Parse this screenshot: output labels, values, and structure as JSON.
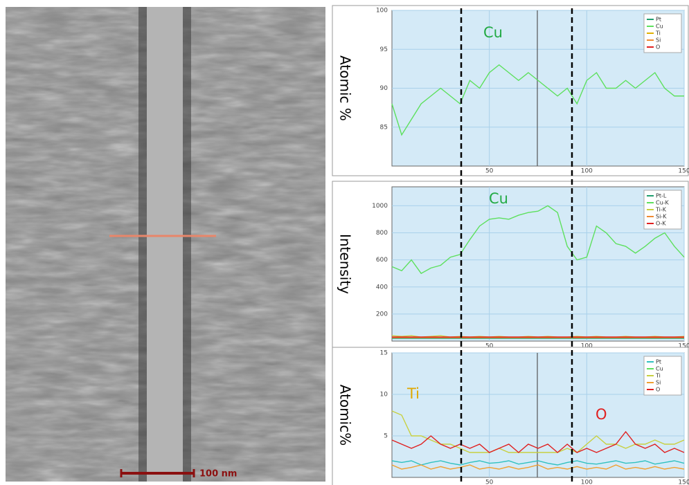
{
  "image": {
    "scale_bar": "100 nm"
  },
  "chart_data": [
    {
      "type": "line",
      "ylabel": "Atomic %",
      "x": [
        0,
        5,
        10,
        15,
        20,
        25,
        30,
        35,
        40,
        45,
        50,
        55,
        60,
        65,
        70,
        75,
        80,
        85,
        90,
        95,
        100,
        105,
        110,
        115,
        120,
        125,
        130,
        135,
        140,
        145,
        150
      ],
      "xlim": [
        0,
        150
      ],
      "xticks": [
        50,
        100,
        150
      ],
      "ylim": [
        80,
        100
      ],
      "yticks": [
        85,
        90,
        95,
        100
      ],
      "grid": true,
      "annotations": [
        {
          "text": "Cu",
          "color": "#22aa44"
        }
      ],
      "series": [
        {
          "name": "Pt",
          "color": "#1f9e6e",
          "values": [
            null,
            null,
            null,
            null,
            null,
            null,
            null,
            null,
            null,
            null,
            null,
            null,
            null,
            null,
            null,
            null,
            null,
            null,
            null,
            null,
            null,
            null,
            null,
            null,
            null,
            null,
            null,
            null,
            null,
            null,
            null
          ]
        },
        {
          "name": "Cu",
          "color": "#5de05d",
          "values": [
            88,
            84,
            86,
            88,
            89,
            90,
            89,
            88,
            91,
            90,
            92,
            93,
            92,
            91,
            92,
            91,
            90,
            89,
            90,
            88,
            91,
            92,
            90,
            90,
            91,
            90,
            91,
            92,
            90,
            89,
            89
          ]
        },
        {
          "name": "Ti",
          "color": "#e0b000",
          "values": [
            null,
            null,
            null,
            null,
            null,
            null,
            null,
            null,
            null,
            null,
            null,
            null,
            null,
            null,
            null,
            null,
            null,
            null,
            null,
            null,
            null,
            null,
            null,
            null,
            null,
            null,
            null,
            null,
            null,
            null,
            null
          ]
        },
        {
          "name": "Si",
          "color": "#f08a30",
          "values": [
            null,
            null,
            null,
            null,
            null,
            null,
            null,
            null,
            null,
            null,
            null,
            null,
            null,
            null,
            null,
            null,
            null,
            null,
            null,
            null,
            null,
            null,
            null,
            null,
            null,
            null,
            null,
            null,
            null,
            null,
            null
          ]
        },
        {
          "name": "O",
          "color": "#e02020",
          "values": [
            null,
            null,
            null,
            null,
            null,
            null,
            null,
            null,
            null,
            null,
            null,
            null,
            null,
            null,
            null,
            null,
            null,
            null,
            null,
            null,
            null,
            null,
            null,
            null,
            null,
            null,
            null,
            null,
            null,
            null,
            null
          ]
        }
      ]
    },
    {
      "type": "line",
      "ylabel": "Intensity",
      "x": [
        0,
        5,
        10,
        15,
        20,
        25,
        30,
        35,
        40,
        45,
        50,
        55,
        60,
        65,
        70,
        75,
        80,
        85,
        90,
        95,
        100,
        105,
        110,
        115,
        120,
        125,
        130,
        135,
        140,
        145,
        150
      ],
      "xlim": [
        0,
        150
      ],
      "xticks": [
        50,
        100,
        150
      ],
      "ylim": [
        0,
        1140
      ],
      "yticks": [
        200,
        400,
        600,
        800,
        1000
      ],
      "grid": true,
      "annotations": [
        {
          "text": "Cu",
          "color": "#22aa44"
        }
      ],
      "series": [
        {
          "name": "Pt-L",
          "color": "#1f9e6e",
          "values": [
            20,
            20,
            20,
            20,
            20,
            20,
            20,
            20,
            20,
            20,
            20,
            20,
            20,
            20,
            20,
            20,
            20,
            20,
            20,
            20,
            20,
            20,
            20,
            20,
            20,
            20,
            20,
            20,
            20,
            20,
            20
          ]
        },
        {
          "name": "Cu-K",
          "color": "#5de05d",
          "values": [
            550,
            520,
            600,
            500,
            540,
            560,
            620,
            640,
            750,
            850,
            900,
            910,
            900,
            930,
            950,
            960,
            1000,
            950,
            700,
            600,
            620,
            850,
            800,
            720,
            700,
            650,
            700,
            760,
            800,
            700,
            620
          ]
        },
        {
          "name": "Ti-K",
          "color": "#c8d040",
          "values": [
            40,
            35,
            40,
            30,
            35,
            40,
            30,
            35,
            30,
            35,
            30,
            35,
            30,
            30,
            35,
            30,
            35,
            30,
            30,
            35,
            30,
            35,
            30,
            30,
            35,
            30,
            30,
            35,
            30,
            30,
            35
          ]
        },
        {
          "name": "Si-K",
          "color": "#f08a30",
          "values": [
            25,
            25,
            25,
            25,
            25,
            25,
            25,
            25,
            25,
            25,
            25,
            25,
            25,
            25,
            25,
            25,
            25,
            25,
            25,
            25,
            25,
            25,
            25,
            25,
            25,
            25,
            25,
            25,
            25,
            25,
            25
          ]
        },
        {
          "name": "O-K",
          "color": "#e02020",
          "values": [
            30,
            30,
            30,
            30,
            30,
            30,
            30,
            30,
            30,
            30,
            30,
            30,
            30,
            30,
            30,
            30,
            30,
            30,
            30,
            30,
            30,
            30,
            30,
            30,
            30,
            30,
            30,
            30,
            30,
            30,
            30
          ]
        }
      ]
    },
    {
      "type": "line",
      "ylabel": "Atomic%",
      "x": [
        0,
        5,
        10,
        15,
        20,
        25,
        30,
        35,
        40,
        45,
        50,
        55,
        60,
        65,
        70,
        75,
        80,
        85,
        90,
        95,
        100,
        105,
        110,
        115,
        120,
        125,
        130,
        135,
        140,
        145,
        150
      ],
      "xlim": [
        0,
        150
      ],
      "xticks": [
        50,
        100,
        150
      ],
      "ylim": [
        0,
        15
      ],
      "yticks": [
        5,
        10,
        15
      ],
      "grid": true,
      "annotations": [
        {
          "text": "Ti",
          "color": "#e0a800"
        },
        {
          "text": "O",
          "color": "#e02020"
        }
      ],
      "series": [
        {
          "name": "Pt",
          "color": "#30c0c0",
          "values": [
            2,
            1.8,
            2,
            1.5,
            1.8,
            2,
            1.7,
            1.5,
            1.8,
            2,
            1.7,
            1.8,
            2,
            1.6,
            1.8,
            2,
            1.7,
            1.5,
            1.8,
            2,
            1.7,
            1.6,
            1.8,
            2,
            1.7,
            1.8,
            2,
            1.6,
            1.8,
            2,
            1.7
          ]
        },
        {
          "name": "Cu",
          "color": "#5de05d",
          "values": [
            null,
            null,
            null,
            null,
            null,
            null,
            null,
            null,
            null,
            null,
            null,
            null,
            null,
            null,
            null,
            null,
            null,
            null,
            null,
            null,
            null,
            null,
            null,
            null,
            null,
            null,
            null,
            null,
            null,
            null,
            null
          ]
        },
        {
          "name": "Ti",
          "color": "#c8d040",
          "values": [
            8,
            7.5,
            5,
            5,
            4.5,
            4,
            4,
            3.5,
            3,
            3,
            3,
            3.5,
            3,
            3,
            3,
            3,
            3,
            3,
            3.5,
            3,
            4,
            5,
            4,
            4,
            3.5,
            4,
            4,
            4.5,
            4,
            4,
            4.5
          ]
        },
        {
          "name": "Si",
          "color": "#f0a030",
          "values": [
            1.5,
            1,
            1.2,
            1.5,
            1,
            1.3,
            1,
            1.2,
            1.5,
            1,
            1.2,
            1,
            1.3,
            1,
            1.2,
            1.5,
            1,
            1.2,
            1,
            1.3,
            1,
            1.2,
            1,
            1.5,
            1,
            1.2,
            1,
            1.3,
            1,
            1.2,
            1
          ]
        },
        {
          "name": "O",
          "color": "#e02020",
          "values": [
            4.5,
            4,
            3.5,
            4,
            5,
            4,
            3.5,
            4,
            3.5,
            4,
            3,
            3.5,
            4,
            3,
            4,
            3.5,
            4,
            3,
            4,
            3,
            3.5,
            3,
            3.5,
            4,
            5.5,
            4,
            3.5,
            4,
            3,
            3.5,
            3
          ]
        }
      ]
    }
  ]
}
